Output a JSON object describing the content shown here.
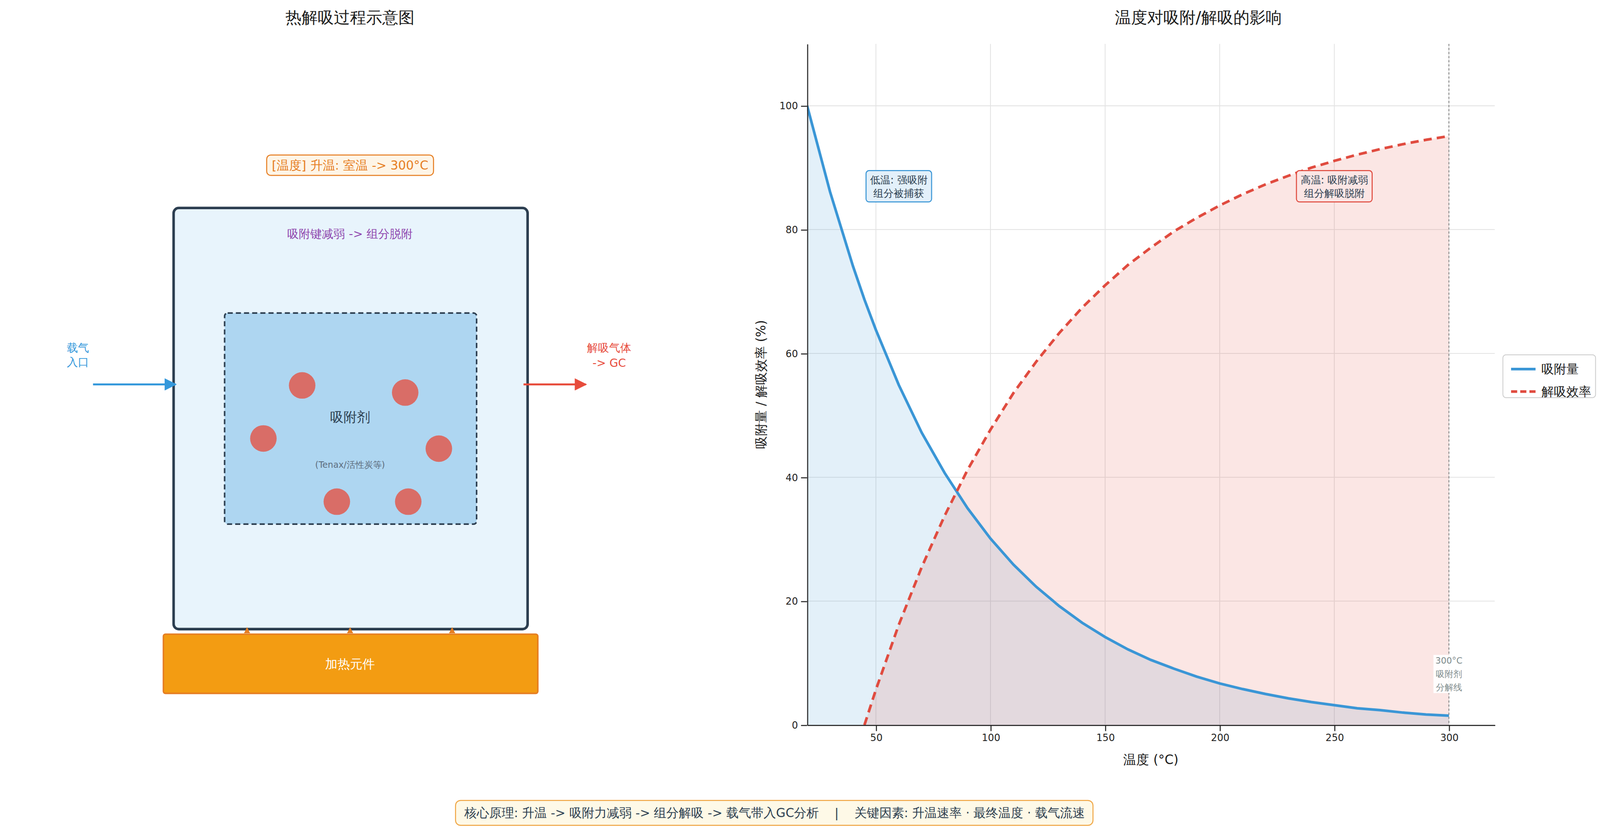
{
  "diagram": {
    "title": "热解吸过程示意图",
    "temperature_label": "[温度] 升温: 室温 -> 300°C",
    "chamber_label": "吸附键减弱 -> 组分脱附",
    "adsorbent_label": "吸附剂",
    "adsorbent_note": "(Tenax/活性炭等)",
    "heater_label": "加热元件",
    "inlet_label": [
      "载气",
      "入口"
    ],
    "outlet_label": [
      "解吸气体",
      "-> GC"
    ]
  },
  "chart_data": {
    "type": "line",
    "title": "温度对吸附/解吸的影响",
    "x_label": "温度 (°C)",
    "y_label": "吸附量 / 解吸效率 (%)",
    "x": [
      20,
      30,
      40,
      45,
      50,
      60,
      70,
      80,
      90,
      100,
      110,
      120,
      130,
      140,
      150,
      160,
      170,
      180,
      190,
      200,
      210,
      220,
      230,
      240,
      250,
      260,
      270,
      280,
      290,
      300
    ],
    "series": [
      {
        "name": "吸附量",
        "color": "#3a96d6",
        "line_style": "solid",
        "type": "area",
        "values": [
          100,
          86.1,
          74.1,
          68.7,
          63.8,
          54.9,
          47.2,
          40.7,
          35.0,
          30.1,
          25.9,
          22.3,
          19.2,
          16.5,
          14.2,
          12.2,
          10.5,
          9.1,
          7.8,
          6.7,
          5.8,
          5.0,
          4.3,
          3.7,
          3.2,
          2.7,
          2.4,
          2.0,
          1.7,
          1.5
        ]
      },
      {
        "name": "解吸效率",
        "color": "#e04b3f",
        "line_style": "dashed",
        "type": "area",
        "values": [
          null,
          null,
          null,
          0,
          5.7,
          16.2,
          25.5,
          33.8,
          41.2,
          47.7,
          53.6,
          58.7,
          63.3,
          67.4,
          71.0,
          74.3,
          77.1,
          79.7,
          81.9,
          83.9,
          85.7,
          87.3,
          88.7,
          90.0,
          91.1,
          92.1,
          93.0,
          93.8,
          94.5,
          95.1
        ]
      }
    ],
    "xlim": [
      20,
      320
    ],
    "xticks": [
      50,
      100,
      150,
      200,
      250,
      300
    ],
    "ylim": [
      0,
      110
    ],
    "yticks": [
      0,
      20,
      40,
      60,
      80,
      100
    ],
    "grid": true,
    "legend": "right",
    "annotations": [
      {
        "text": [
          "低温: 强吸附",
          "组分被捕获"
        ],
        "x": 60,
        "y": 87
      },
      {
        "text": [
          "高温: 吸附减弱",
          "组分解吸脱附"
        ],
        "x": 250,
        "y": 87
      }
    ],
    "vline": {
      "x": 300,
      "text": [
        "300°C",
        "吸附剂",
        "分解线"
      ]
    }
  },
  "footer": {
    "text": "核心原理: 升温 -> 吸附力减弱 -> 组分解吸 -> 载气带入GC分析    |    关键因素: 升温速率 · 最终温度 · 载气流速"
  }
}
